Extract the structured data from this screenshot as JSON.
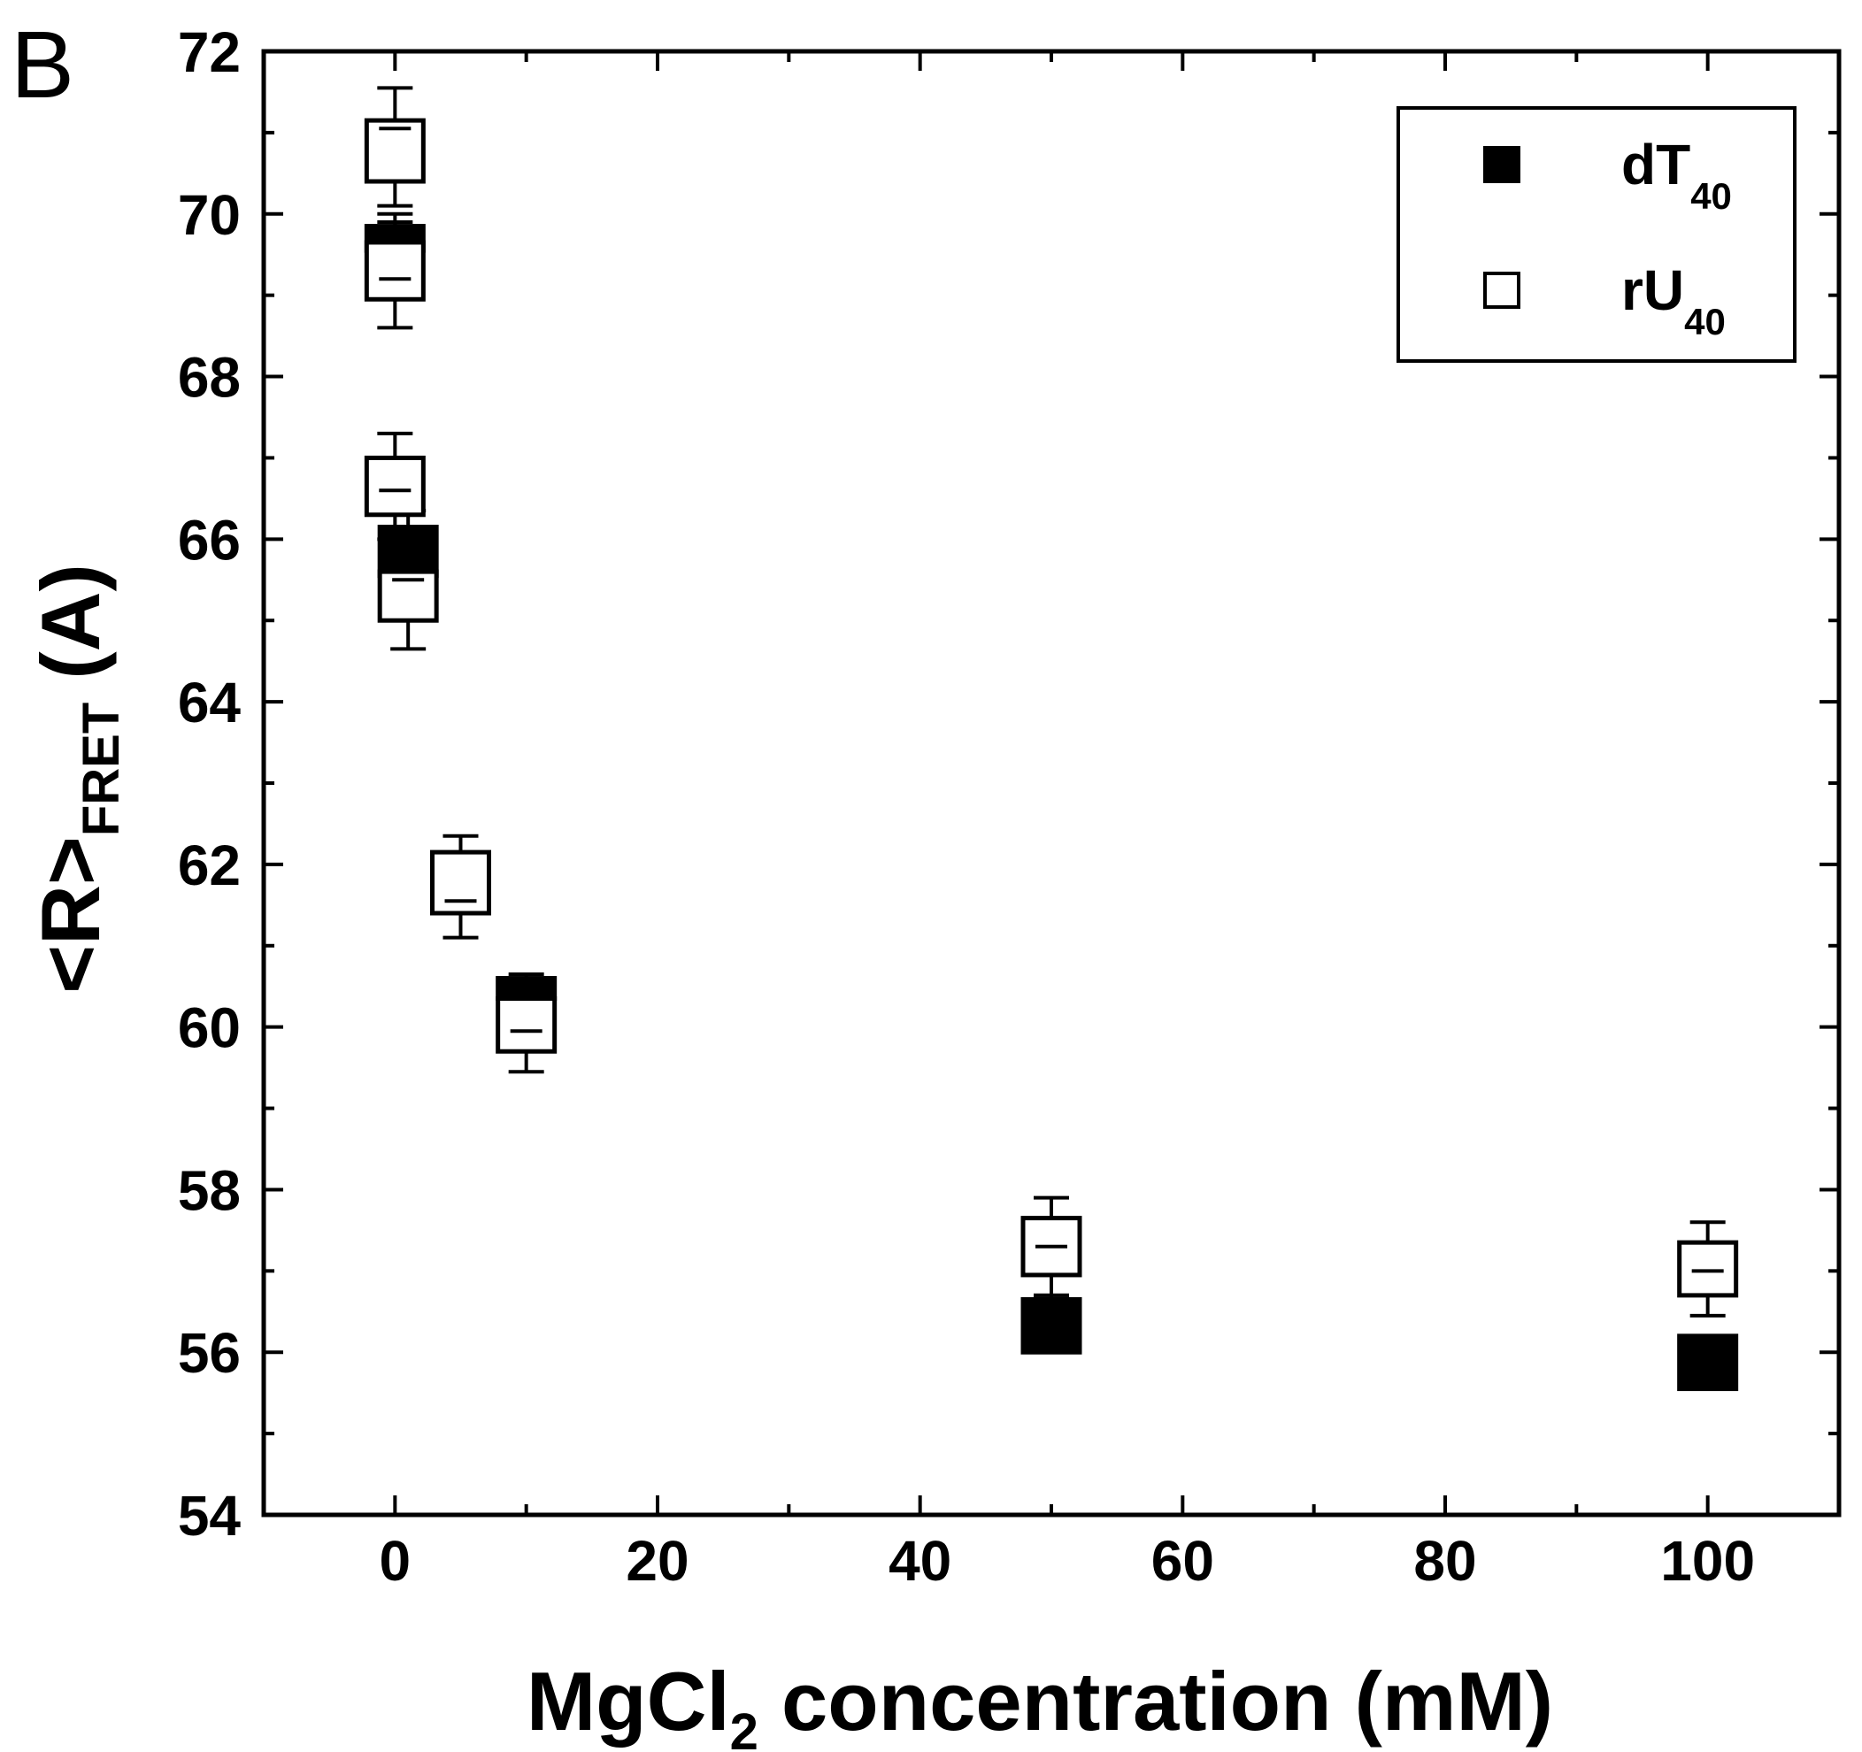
{
  "chart_data": {
    "type": "scatter",
    "panel_label": "B",
    "xlabel": {
      "main": "MgCl",
      "sub": "2",
      "tail": " concentration (mM)"
    },
    "ylabel": {
      "main": "<R>",
      "sub": "FRET",
      "tail": " (A)"
    },
    "xlim": [
      -10,
      110
    ],
    "ylim": [
      54,
      72
    ],
    "x_ticks": [
      0,
      20,
      40,
      60,
      80,
      100
    ],
    "x_minor_step": 10,
    "y_ticks": [
      54,
      56,
      58,
      60,
      62,
      64,
      66,
      68,
      70,
      72
    ],
    "y_minor_step": 1,
    "grid": false,
    "legend_position": "top-right",
    "series": [
      {
        "name": "dT",
        "name_sub": "40",
        "marker": "filled-square",
        "color": "#000000",
        "points": [
          {
            "x": 0,
            "box": [
              69.55,
              69.85
            ],
            "median": 69.7,
            "whisker": [
              69.5,
              70.0
            ]
          },
          {
            "x": 1,
            "box": [
              65.55,
              66.15
            ],
            "median": 65.85,
            "whisker": [
              65.5,
              66.35
            ]
          },
          {
            "x": 10,
            "box": [
              60.35,
              60.6
            ],
            "median": 60.5,
            "whisker": [
              60.3,
              60.65
            ]
          },
          {
            "x": 50,
            "box": [
              56.0,
              56.65
            ],
            "median": 56.3,
            "whisker": [
              56.0,
              56.7
            ]
          },
          {
            "x": 100,
            "box": [
              55.55,
              56.2
            ],
            "median": 55.85,
            "whisker": [
              55.55,
              56.2
            ]
          }
        ]
      },
      {
        "name": "rU",
        "name_sub": "40",
        "marker": "open-square",
        "color": "#000000",
        "points": [
          {
            "x": 0,
            "box": [
              70.4,
              71.15
            ],
            "median": 71.05,
            "whisker": [
              70.1,
              71.55
            ]
          },
          {
            "x": 0,
            "box": [
              68.95,
              69.65
            ],
            "median": 69.2,
            "whisker": [
              68.6,
              69.9
            ]
          },
          {
            "x": 0,
            "box": [
              66.3,
              67.0
            ],
            "median": 66.6,
            "whisker": [
              66.0,
              67.3
            ]
          },
          {
            "x": 1,
            "box": [
              65.0,
              65.6
            ],
            "median": 65.5,
            "whisker": [
              64.65,
              65.85
            ]
          },
          {
            "x": 5,
            "box": [
              61.4,
              62.15
            ],
            "median": 61.55,
            "whisker": [
              61.1,
              62.35
            ]
          },
          {
            "x": 10,
            "box": [
              59.7,
              60.35
            ],
            "median": 59.95,
            "whisker": [
              59.45,
              60.6
            ]
          },
          {
            "x": 50,
            "box": [
              56.95,
              57.65
            ],
            "median": 57.3,
            "whisker": [
              56.7,
              57.9
            ]
          },
          {
            "x": 100,
            "box": [
              56.7,
              57.35
            ],
            "median": 57.0,
            "whisker": [
              56.45,
              57.6
            ]
          }
        ]
      }
    ]
  }
}
